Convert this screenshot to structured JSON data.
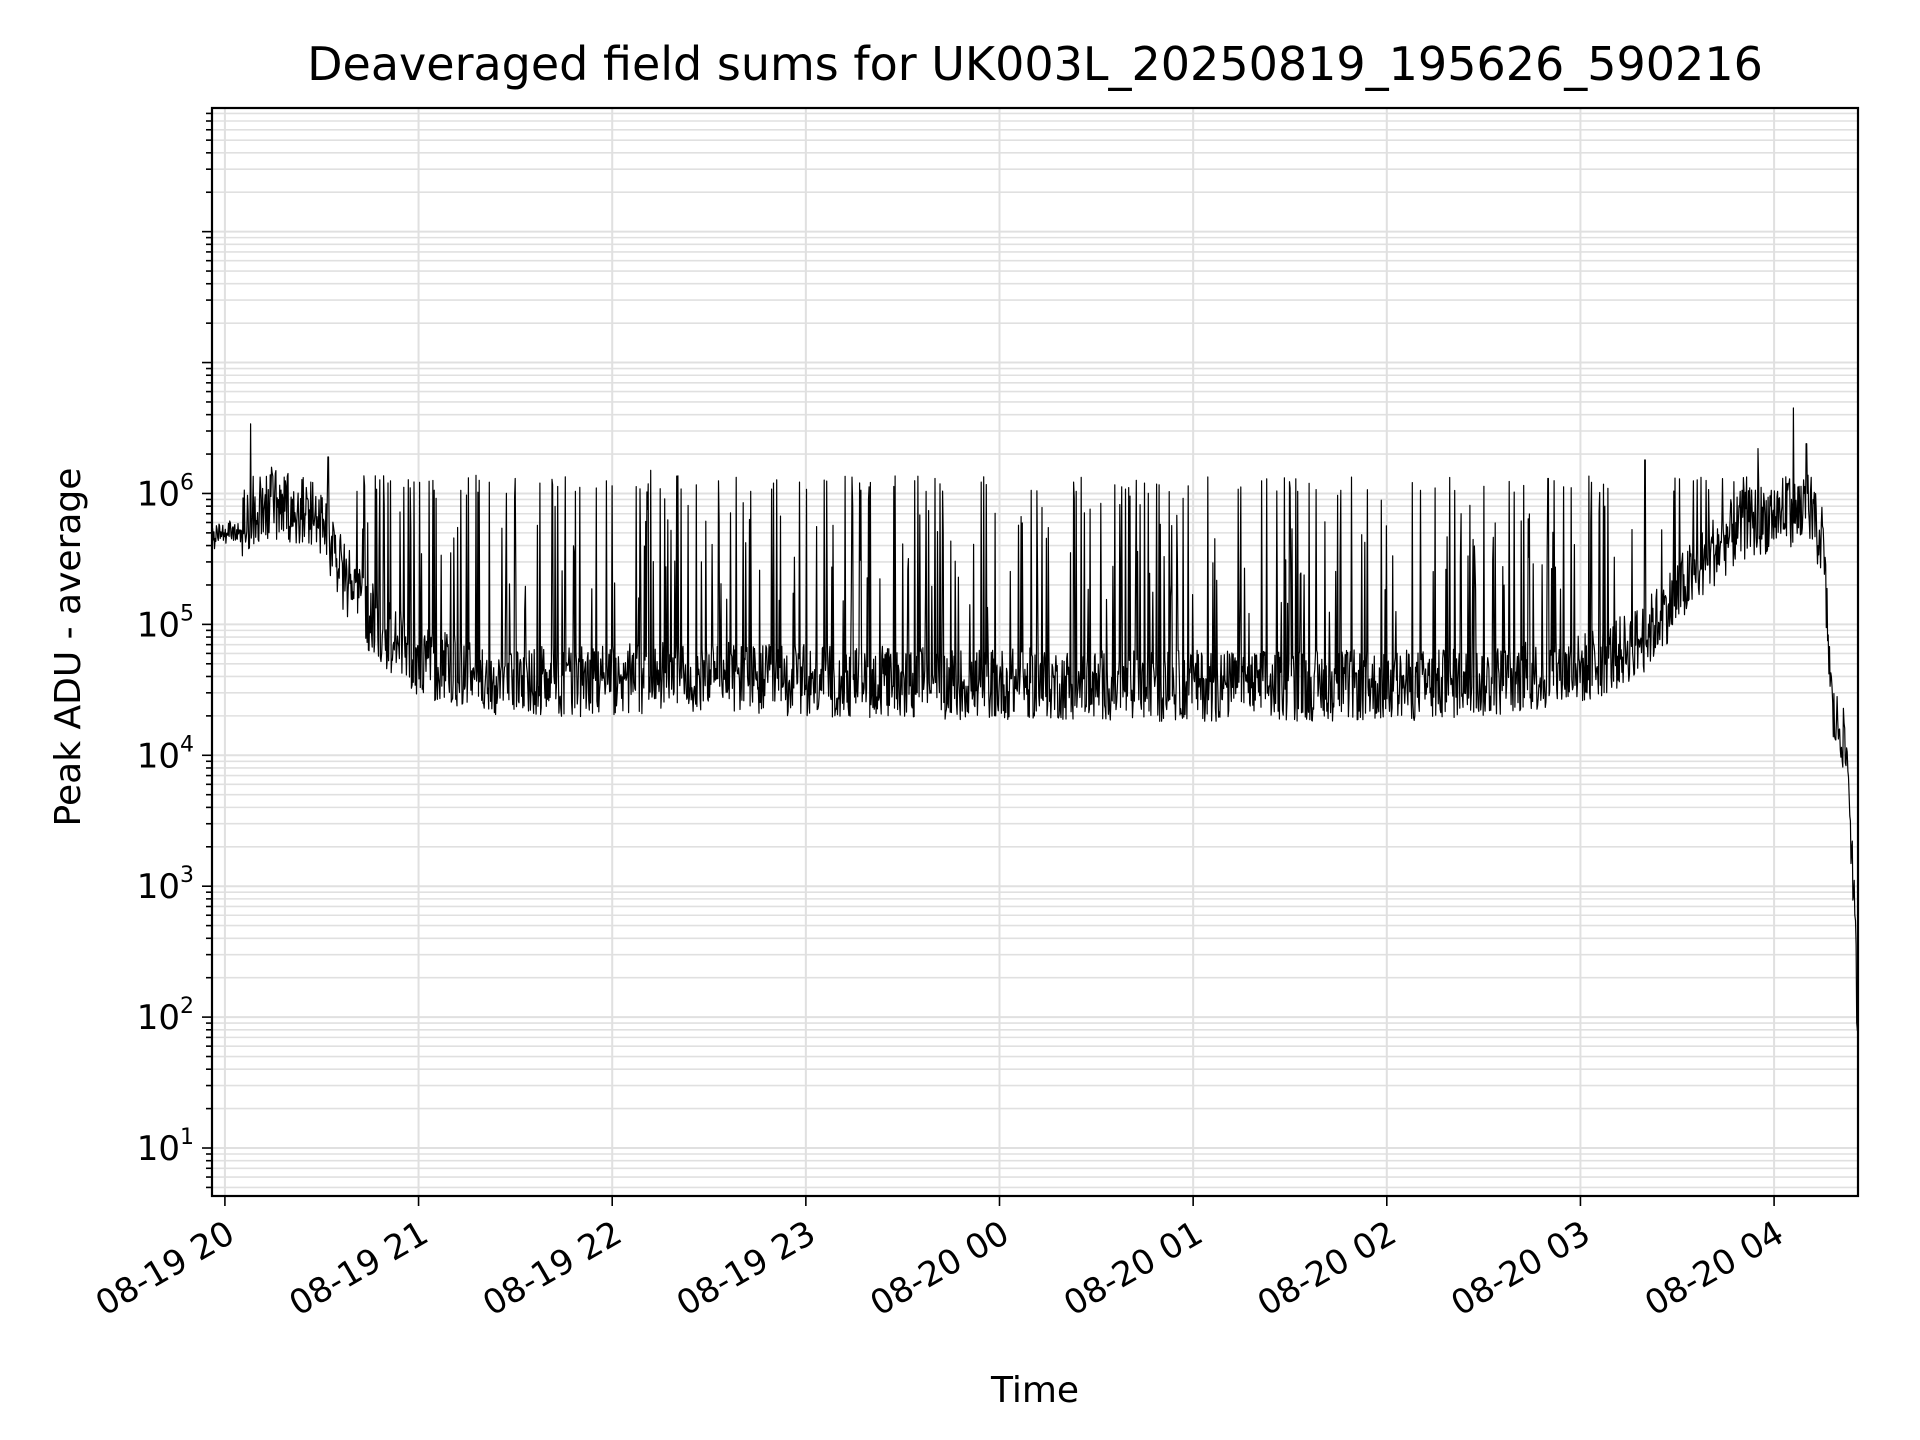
{
  "chart_data": {
    "type": "line",
    "title": "Deaveraged field sums for UK003L_20250819_195626_590216",
    "xlabel": "Time",
    "ylabel": "Peak ADU - average",
    "yscale": "log",
    "ylim": [
      4.3,
      880000000
    ],
    "xlim": [
      "2025-08-19 19:56",
      "2025-08-20 04:26"
    ],
    "grid": true,
    "line_color": "#000000",
    "grid_color": "#e0e0e0",
    "x_ticks": [
      "2025-08-19 20:00",
      "2025-08-19 21:00",
      "2025-08-19 22:00",
      "2025-08-19 23:00",
      "2025-08-20 00:00",
      "2025-08-20 01:00",
      "2025-08-20 02:00",
      "2025-08-20 03:00",
      "2025-08-20 04:00"
    ],
    "x_tick_labels": [
      "08-19 20",
      "08-19 21",
      "08-19 22",
      "08-19 23",
      "08-20 00",
      "08-20 01",
      "08-20 02",
      "08-20 03",
      "08-20 04"
    ],
    "y_ticks": [
      10,
      100,
      1000,
      10000,
      100000,
      1000000
    ],
    "y_tick_labels": [
      {
        "base": "10",
        "exp": "1"
      },
      {
        "base": "10",
        "exp": "2"
      },
      {
        "base": "10",
        "exp": "3"
      },
      {
        "base": "10",
        "exp": "4"
      },
      {
        "base": "10",
        "exp": "5"
      },
      {
        "base": "10",
        "exp": "6"
      }
    ],
    "series": [
      {
        "x": [
          "2025-08-19 19:56",
          "2025-08-19 20:00",
          "2025-08-19 20:05",
          "2025-08-19 20:10",
          "2025-08-19 20:15",
          "2025-08-19 20:20",
          "2025-08-19 20:25",
          "2025-08-19 20:30",
          "2025-08-19 20:35",
          "2025-08-19 20:40",
          "2025-08-19 20:45",
          "2025-08-19 20:50",
          "2025-08-19 20:55",
          "2025-08-19 21:00",
          "2025-08-19 21:10",
          "2025-08-19 21:20",
          "2025-08-19 21:30",
          "2025-08-19 21:45",
          "2025-08-19 22:00",
          "2025-08-19 22:15",
          "2025-08-19 22:30",
          "2025-08-19 22:45",
          "2025-08-19 23:00",
          "2025-08-19 23:15",
          "2025-08-19 23:30",
          "2025-08-19 23:45",
          "2025-08-20 00:00",
          "2025-08-20 00:15",
          "2025-08-20 00:30",
          "2025-08-20 00:45",
          "2025-08-20 01:00",
          "2025-08-20 01:15",
          "2025-08-20 01:30",
          "2025-08-20 01:45",
          "2025-08-20 02:00",
          "2025-08-20 02:15",
          "2025-08-20 02:30",
          "2025-08-20 02:45",
          "2025-08-20 03:00",
          "2025-08-20 03:10",
          "2025-08-20 03:20",
          "2025-08-20 03:30",
          "2025-08-20 03:40",
          "2025-08-20 03:50",
          "2025-08-20 04:00",
          "2025-08-20 04:05",
          "2025-08-20 04:10",
          "2025-08-20 04:15",
          "2025-08-20 04:18",
          "2025-08-20 04:21",
          "2025-08-20 04:23",
          "2025-08-20 04:25",
          "2025-08-20 04:26"
        ],
        "base": [
          450000,
          500000,
          520000,
          700000,
          750000,
          700000,
          650000,
          500000,
          250000,
          150000,
          100000,
          75000,
          60000,
          45000,
          40000,
          35000,
          32000,
          32000,
          33000,
          35000,
          35000,
          33000,
          33000,
          32000,
          32000,
          31000,
          31000,
          31000,
          30000,
          30000,
          30000,
          30000,
          30000,
          30000,
          30000,
          30000,
          32000,
          35000,
          40000,
          50000,
          70000,
          150000,
          300000,
          500000,
          600000,
          650000,
          600000,
          400000,
          20000,
          15000,
          8000,
          500,
          70
        ],
        "peaks": [
          [
            "2025-08-19 20:08",
            3400000
          ],
          [
            "2025-08-19 20:32",
            1900000
          ],
          [
            "2025-08-19 21:30",
            1300000
          ],
          [
            "2025-08-19 21:55",
            1100000
          ],
          [
            "2025-08-19 22:12",
            1500000
          ],
          [
            "2025-08-19 22:50",
            1200000
          ],
          [
            "2025-08-19 23:40",
            1300000
          ],
          [
            "2025-08-20 00:45",
            1200000
          ],
          [
            "2025-08-20 01:30",
            1100000
          ],
          [
            "2025-08-20 02:15",
            1100000
          ],
          [
            "2025-08-20 02:50",
            1300000
          ],
          [
            "2025-08-20 03:20",
            1800000
          ],
          [
            "2025-08-20 03:55",
            2200000
          ],
          [
            "2025-08-20 04:06",
            4500000
          ],
          [
            "2025-08-20 04:10",
            2400000
          ]
        ]
      }
    ]
  }
}
